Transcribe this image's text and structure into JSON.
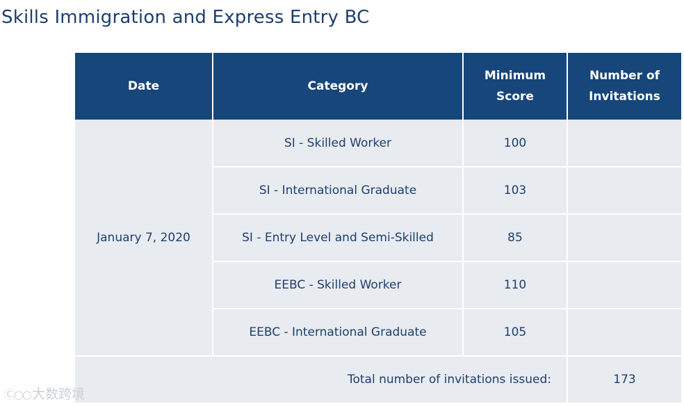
{
  "page": {
    "title": "Skills Immigration and Express Entry BC"
  },
  "table": {
    "headers": {
      "date": "Date",
      "category": "Category",
      "minimum_score_line1": "Minimum",
      "minimum_score_line2": "Score",
      "invitations_line1": "Number of",
      "invitations_line2": "Invitations"
    },
    "date": "January 7, 2020",
    "rows": [
      {
        "category": "SI - Skilled Worker",
        "minimum_score": "100",
        "invitations": ""
      },
      {
        "category": "SI - International Graduate",
        "minimum_score": "103",
        "invitations": ""
      },
      {
        "category": "SI - Entry Level and Semi-Skilled",
        "minimum_score": "85",
        "invitations": ""
      },
      {
        "category": "EEBC - Skilled Worker",
        "minimum_score": "110",
        "invitations": ""
      },
      {
        "category": "EEBC - International Graduate",
        "minimum_score": "105",
        "invitations": ""
      }
    ],
    "total_label": "Total number of invitations issued:",
    "total_value": "173"
  },
  "watermark": {
    "text": "大数跨境",
    "icon": "logo-icon"
  },
  "colors": {
    "header_bg": "#16467a",
    "cell_bg": "#e8ebf0",
    "text": "#1d3f6e"
  }
}
